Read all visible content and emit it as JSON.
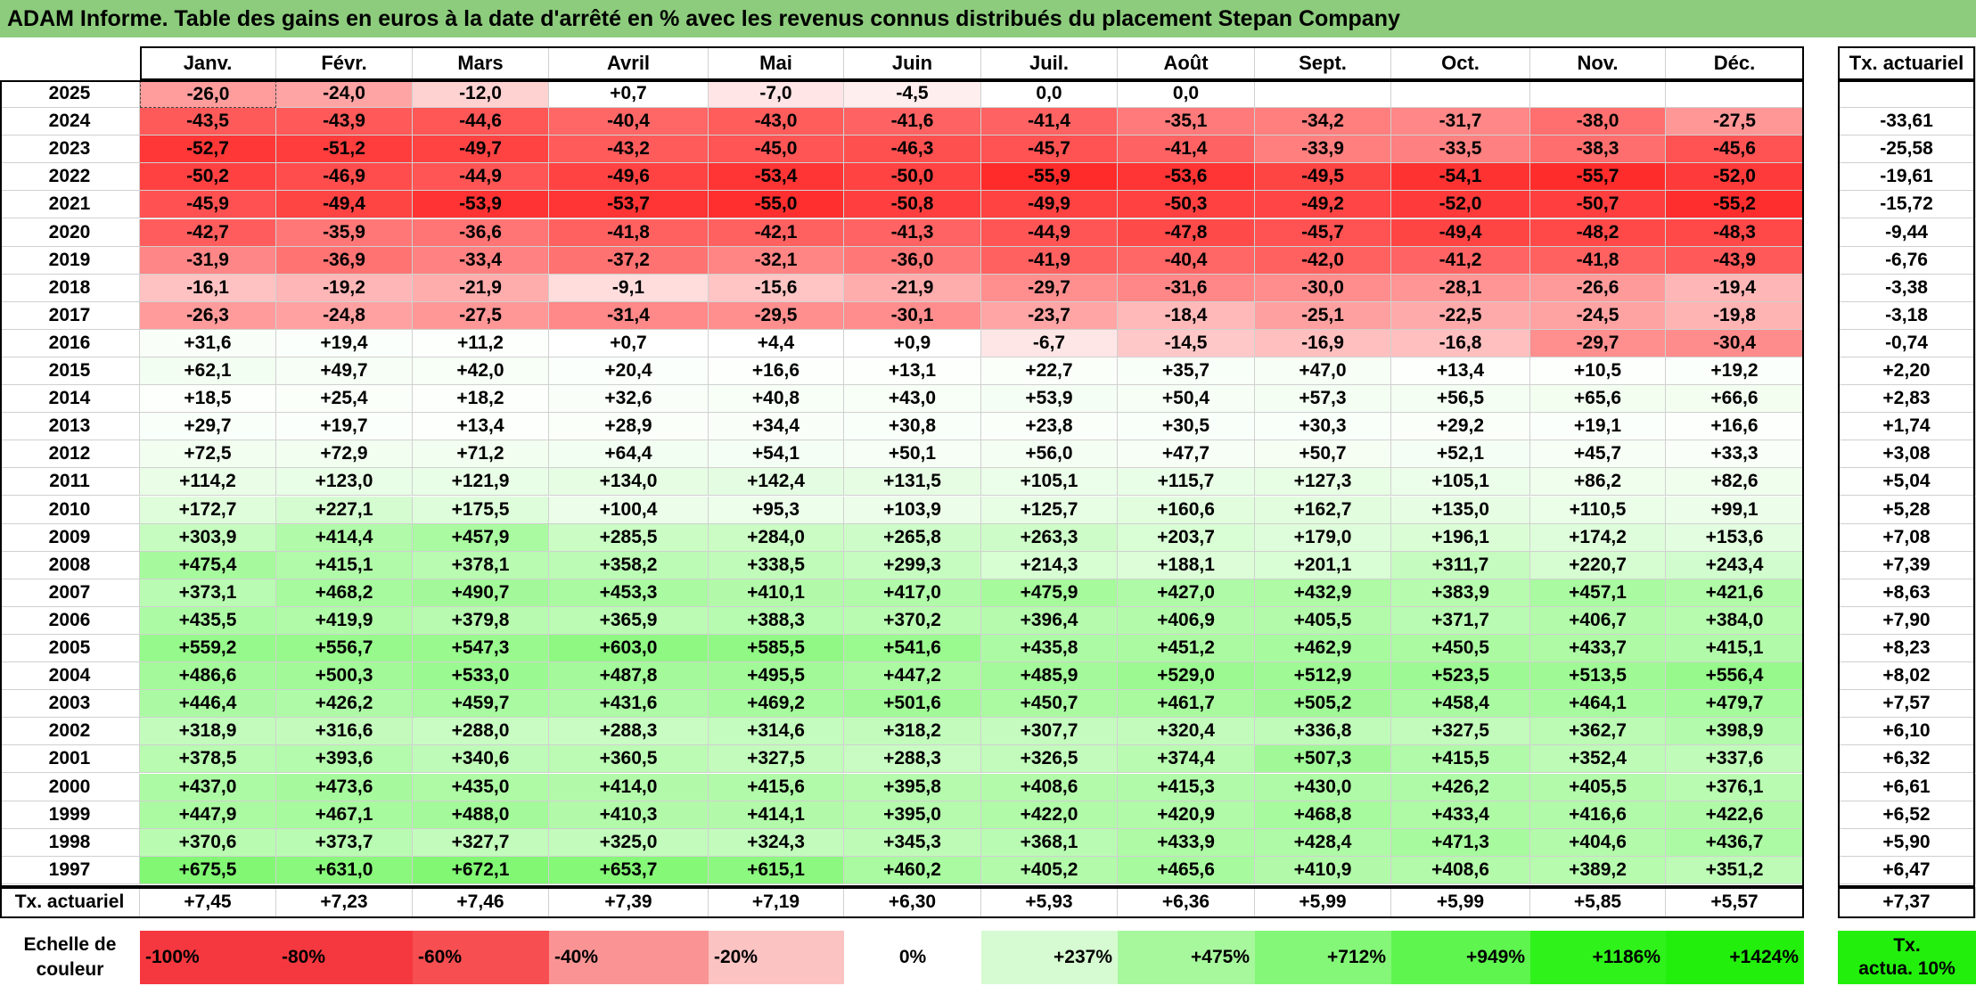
{
  "title": "ADAM Informe. Table des gains en euros à la date d'arrêté en % avec les revenus connus distribués du placement Stepan Company",
  "months": [
    "Janv.",
    "Févr.",
    "Mars",
    "Avril",
    "Mai",
    "Juin",
    "Juil.",
    "Août",
    "Sept.",
    "Oct.",
    "Nov.",
    "Déc."
  ],
  "rate_header": "Tx. actuariel",
  "rows": [
    {
      "year": "2025",
      "values": [
        "-26,0",
        "-24,0",
        "-12,0",
        "+0,7",
        "-7,0",
        "-4,5",
        "0,0",
        "0,0",
        "",
        "",
        "",
        ""
      ],
      "rate": ""
    },
    {
      "year": "2024",
      "values": [
        "-43,5",
        "-43,9",
        "-44,6",
        "-40,4",
        "-43,0",
        "-41,6",
        "-41,4",
        "-35,1",
        "-34,2",
        "-31,7",
        "-38,0",
        "-27,5"
      ],
      "rate": "-33,61"
    },
    {
      "year": "2023",
      "values": [
        "-52,7",
        "-51,2",
        "-49,7",
        "-43,2",
        "-45,0",
        "-46,3",
        "-45,7",
        "-41,4",
        "-33,9",
        "-33,5",
        "-38,3",
        "-45,6"
      ],
      "rate": "-25,58"
    },
    {
      "year": "2022",
      "values": [
        "-50,2",
        "-46,9",
        "-44,9",
        "-49,6",
        "-53,4",
        "-50,0",
        "-55,9",
        "-53,6",
        "-49,5",
        "-54,1",
        "-55,7",
        "-52,0"
      ],
      "rate": "-19,61"
    },
    {
      "year": "2021",
      "values": [
        "-45,9",
        "-49,4",
        "-53,9",
        "-53,7",
        "-55,0",
        "-50,8",
        "-49,9",
        "-50,3",
        "-49,2",
        "-52,0",
        "-50,7",
        "-55,2"
      ],
      "rate": "-15,72"
    },
    {
      "year": "2020",
      "values": [
        "-42,7",
        "-35,9",
        "-36,6",
        "-41,8",
        "-42,1",
        "-41,3",
        "-44,9",
        "-47,8",
        "-45,7",
        "-49,4",
        "-48,2",
        "-48,3"
      ],
      "rate": "-9,44"
    },
    {
      "year": "2019",
      "values": [
        "-31,9",
        "-36,9",
        "-33,4",
        "-37,2",
        "-32,1",
        "-36,0",
        "-41,9",
        "-40,4",
        "-42,0",
        "-41,2",
        "-41,8",
        "-43,9"
      ],
      "rate": "-6,76"
    },
    {
      "year": "2018",
      "values": [
        "-16,1",
        "-19,2",
        "-21,9",
        "-9,1",
        "-15,6",
        "-21,9",
        "-29,7",
        "-31,6",
        "-30,0",
        "-28,1",
        "-26,6",
        "-19,4"
      ],
      "rate": "-3,38"
    },
    {
      "year": "2017",
      "values": [
        "-26,3",
        "-24,8",
        "-27,5",
        "-31,4",
        "-29,5",
        "-30,1",
        "-23,7",
        "-18,4",
        "-25,1",
        "-22,5",
        "-24,5",
        "-19,8"
      ],
      "rate": "-3,18"
    },
    {
      "year": "2016",
      "values": [
        "+31,6",
        "+19,4",
        "+11,2",
        "+0,7",
        "+4,4",
        "+0,9",
        "-6,7",
        "-14,5",
        "-16,9",
        "-16,8",
        "-29,7",
        "-30,4"
      ],
      "rate": "-0,74"
    },
    {
      "year": "2015",
      "values": [
        "+62,1",
        "+49,7",
        "+42,0",
        "+20,4",
        "+16,6",
        "+13,1",
        "+22,7",
        "+35,7",
        "+47,0",
        "+13,4",
        "+10,5",
        "+19,2"
      ],
      "rate": "+2,20"
    },
    {
      "year": "2014",
      "values": [
        "+18,5",
        "+25,4",
        "+18,2",
        "+32,6",
        "+40,8",
        "+43,0",
        "+53,9",
        "+50,4",
        "+57,3",
        "+56,5",
        "+65,6",
        "+66,6"
      ],
      "rate": "+2,83"
    },
    {
      "year": "2013",
      "values": [
        "+29,7",
        "+19,7",
        "+13,4",
        "+28,9",
        "+34,4",
        "+30,8",
        "+23,8",
        "+30,5",
        "+30,3",
        "+29,2",
        "+19,1",
        "+16,6"
      ],
      "rate": "+1,74"
    },
    {
      "year": "2012",
      "values": [
        "+72,5",
        "+72,9",
        "+71,2",
        "+64,4",
        "+54,1",
        "+50,1",
        "+56,0",
        "+47,7",
        "+50,7",
        "+52,1",
        "+45,7",
        "+33,3"
      ],
      "rate": "+3,08"
    },
    {
      "year": "2011",
      "values": [
        "+114,2",
        "+123,0",
        "+121,9",
        "+134,0",
        "+142,4",
        "+131,5",
        "+105,1",
        "+115,7",
        "+127,3",
        "+105,1",
        "+86,2",
        "+82,6"
      ],
      "rate": "+5,04"
    },
    {
      "year": "2010",
      "values": [
        "+172,7",
        "+227,1",
        "+175,5",
        "+100,4",
        "+95,3",
        "+103,9",
        "+125,7",
        "+160,6",
        "+162,7",
        "+135,0",
        "+110,5",
        "+99,1"
      ],
      "rate": "+5,28"
    },
    {
      "year": "2009",
      "values": [
        "+303,9",
        "+414,4",
        "+457,9",
        "+285,5",
        "+284,0",
        "+265,8",
        "+263,3",
        "+203,7",
        "+179,0",
        "+196,1",
        "+174,2",
        "+153,6"
      ],
      "rate": "+7,08"
    },
    {
      "year": "2008",
      "values": [
        "+475,4",
        "+415,1",
        "+378,1",
        "+358,2",
        "+338,5",
        "+299,3",
        "+214,3",
        "+188,1",
        "+201,1",
        "+311,7",
        "+220,7",
        "+243,4"
      ],
      "rate": "+7,39"
    },
    {
      "year": "2007",
      "values": [
        "+373,1",
        "+468,2",
        "+490,7",
        "+453,3",
        "+410,1",
        "+417,0",
        "+475,9",
        "+427,0",
        "+432,9",
        "+383,9",
        "+457,1",
        "+421,6"
      ],
      "rate": "+8,63"
    },
    {
      "year": "2006",
      "values": [
        "+435,5",
        "+419,9",
        "+379,8",
        "+365,9",
        "+388,3",
        "+370,2",
        "+396,4",
        "+406,9",
        "+405,5",
        "+371,7",
        "+406,7",
        "+384,0"
      ],
      "rate": "+7,90"
    },
    {
      "year": "2005",
      "values": [
        "+559,2",
        "+556,7",
        "+547,3",
        "+603,0",
        "+585,5",
        "+541,6",
        "+435,8",
        "+451,2",
        "+462,9",
        "+450,5",
        "+433,7",
        "+415,1"
      ],
      "rate": "+8,23"
    },
    {
      "year": "2004",
      "values": [
        "+486,6",
        "+500,3",
        "+533,0",
        "+487,8",
        "+495,5",
        "+447,2",
        "+485,9",
        "+529,0",
        "+512,9",
        "+523,5",
        "+513,5",
        "+556,4"
      ],
      "rate": "+8,02"
    },
    {
      "year": "2003",
      "values": [
        "+446,4",
        "+426,2",
        "+459,7",
        "+431,6",
        "+469,2",
        "+501,6",
        "+450,7",
        "+461,7",
        "+505,2",
        "+458,4",
        "+464,1",
        "+479,7"
      ],
      "rate": "+7,57"
    },
    {
      "year": "2002",
      "values": [
        "+318,9",
        "+316,6",
        "+288,0",
        "+288,3",
        "+314,6",
        "+318,2",
        "+307,7",
        "+320,4",
        "+336,8",
        "+327,5",
        "+362,7",
        "+398,9"
      ],
      "rate": "+6,10"
    },
    {
      "year": "2001",
      "values": [
        "+378,5",
        "+393,6",
        "+340,6",
        "+360,5",
        "+327,5",
        "+288,3",
        "+326,5",
        "+374,4",
        "+507,3",
        "+415,5",
        "+352,4",
        "+337,6"
      ],
      "rate": "+6,32"
    },
    {
      "year": "2000",
      "values": [
        "+437,0",
        "+473,6",
        "+435,0",
        "+414,0",
        "+415,6",
        "+395,8",
        "+408,6",
        "+415,3",
        "+430,0",
        "+426,2",
        "+405,5",
        "+376,1"
      ],
      "rate": "+6,61"
    },
    {
      "year": "1999",
      "values": [
        "+447,9",
        "+467,1",
        "+488,0",
        "+410,3",
        "+414,1",
        "+395,0",
        "+422,0",
        "+420,9",
        "+468,8",
        "+433,4",
        "+416,6",
        "+422,6"
      ],
      "rate": "+6,52"
    },
    {
      "year": "1998",
      "values": [
        "+370,6",
        "+373,7",
        "+327,7",
        "+325,0",
        "+324,3",
        "+345,3",
        "+368,1",
        "+433,9",
        "+428,4",
        "+471,3",
        "+404,6",
        "+436,7"
      ],
      "rate": "+5,90"
    },
    {
      "year": "1997",
      "values": [
        "+675,5",
        "+631,0",
        "+672,1",
        "+653,7",
        "+615,1",
        "+460,2",
        "+405,2",
        "+465,6",
        "+410,9",
        "+408,6",
        "+389,2",
        "+351,2"
      ],
      "rate": "+6,47"
    }
  ],
  "summary_row": {
    "label": "Tx. actuariel",
    "values": [
      "+7,45",
      "+7,23",
      "+7,46",
      "+7,39",
      "+7,19",
      "+6,30",
      "+5,93",
      "+6,36",
      "+5,99",
      "+5,99",
      "+5,85",
      "+5,57"
    ],
    "rate": "+7,37"
  },
  "legend": {
    "label_line1": "Echelle de",
    "label_line2": "couleur",
    "items": [
      {
        "text": "-100%",
        "color": "#f5383f",
        "align": "left"
      },
      {
        "text": "-80%",
        "color": "#f5383f",
        "align": "left"
      },
      {
        "text": "-60%",
        "color": "#f64e51",
        "align": "left"
      },
      {
        "text": "-40%",
        "color": "#fa9494",
        "align": "left"
      },
      {
        "text": "-20%",
        "color": "#fcc3c3",
        "align": "left"
      },
      {
        "text": "0%",
        "color": "#ffffff",
        "align": "center"
      },
      {
        "text": "+237%",
        "color": "#d6fbd2",
        "align": "right"
      },
      {
        "text": "+475%",
        "color": "#a7f79d",
        "align": "right"
      },
      {
        "text": "+712%",
        "color": "#84f778",
        "align": "right"
      },
      {
        "text": "+949%",
        "color": "#5ef54f",
        "align": "right"
      },
      {
        "text": "+1186%",
        "color": "#30f21b",
        "align": "right"
      },
      {
        "text": "+1424%",
        "color": "#22f00c",
        "align": "right"
      }
    ],
    "rate_line1": "Tx.",
    "rate_line2": "actua. 10%",
    "rate_color": "#22f00c"
  },
  "colors": {
    "title_bar": "#8ccc7c",
    "negative_max": "#ff2b2b",
    "positive_max": "#22f00c"
  }
}
